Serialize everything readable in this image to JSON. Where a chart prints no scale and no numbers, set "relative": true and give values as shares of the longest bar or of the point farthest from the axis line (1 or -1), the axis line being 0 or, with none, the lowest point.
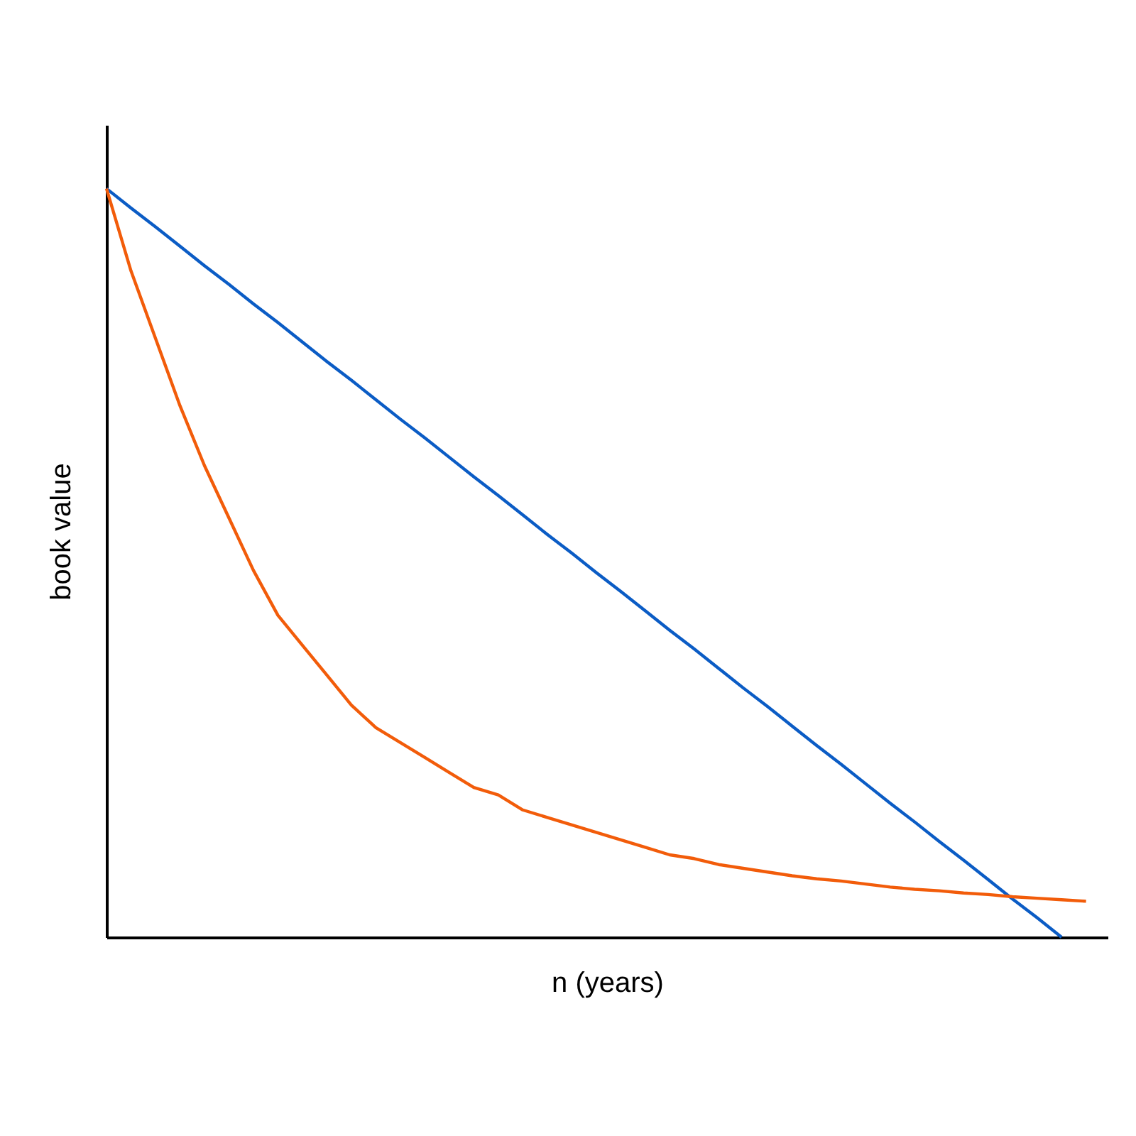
{
  "chart_data": {
    "type": "line",
    "relative": true,
    "xlabel": "n (years)",
    "ylabel": "book value",
    "tick_labels": false,
    "grid": false,
    "categories": [
      null,
      null,
      null,
      null,
      null,
      null,
      null,
      null,
      null,
      null,
      null,
      null,
      null,
      null,
      null,
      null,
      null,
      null,
      null,
      null,
      null,
      null,
      null,
      null,
      null,
      null,
      null,
      null,
      null,
      null,
      null,
      null,
      null,
      null,
      null,
      null,
      null,
      null,
      null,
      null,
      null
    ],
    "series": [
      {
        "color": "#0b5cc5",
        "values": [
          1,
          0.974,
          0.949,
          0.923,
          0.897,
          0.872,
          0.846,
          0.821,
          0.795,
          0.769,
          0.744,
          0.718,
          0.692,
          0.667,
          0.641,
          0.615,
          0.59,
          0.564,
          0.538,
          0.513,
          0.487,
          0.462,
          0.436,
          0.41,
          0.385,
          0.359,
          0.333,
          0.308,
          0.282,
          0.256,
          0.231,
          0.205,
          0.179,
          0.154,
          0.128,
          0.103,
          0.077,
          0.051,
          0.026,
          0,
          null
        ]
      },
      {
        "color": "#f25c0a",
        "values": [
          1,
          0.89,
          0.8,
          0.71,
          0.63,
          0.56,
          0.49,
          0.43,
          0.39,
          0.35,
          0.31,
          0.28,
          0.26,
          0.24,
          0.22,
          0.2,
          0.19,
          0.17,
          0.16,
          0.15,
          0.14,
          0.13,
          0.12,
          0.11,
          0.105,
          0.097,
          0.092,
          0.087,
          0.082,
          0.078,
          0.075,
          0.071,
          0.067,
          0.064,
          0.062,
          0.059,
          0.057,
          0.054,
          0.052,
          0.05,
          0.048
        ]
      }
    ]
  }
}
